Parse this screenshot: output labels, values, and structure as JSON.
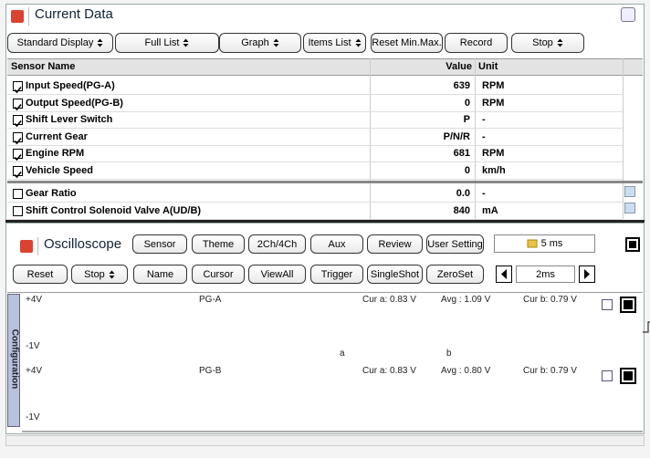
{
  "current_data": {
    "title": "Current Data",
    "toolbar": [
      {
        "label": "Standard Display",
        "dropdown": true
      },
      {
        "label": "Full List",
        "dropdown": true
      },
      {
        "label": "Graph",
        "dropdown": true
      },
      {
        "label": "Items List",
        "dropdown": true
      },
      {
        "label": "Reset Min.Max.",
        "dropdown": false
      },
      {
        "label": "Record",
        "dropdown": false
      },
      {
        "label": "Stop",
        "dropdown": true
      }
    ],
    "table": {
      "columns": [
        "Sensor Name",
        "Value",
        "Unit"
      ],
      "rows": [
        {
          "name": "Input Speed(PG-A)",
          "value": "639",
          "unit": "RPM",
          "checked": true
        },
        {
          "name": "Output Speed(PG-B)",
          "value": "0",
          "unit": "RPM",
          "checked": true
        },
        {
          "name": "Shift Lever Switch",
          "value": "P",
          "unit": "-",
          "checked": true
        },
        {
          "name": "Current Gear",
          "value": "P/N/R",
          "unit": "-",
          "checked": true
        },
        {
          "name": "Engine RPM",
          "value": "681",
          "unit": "RPM",
          "checked": true
        },
        {
          "name": "Vehicle Speed",
          "value": "0",
          "unit": "km/h",
          "checked": true
        }
      ],
      "more_rows": [
        {
          "name": "Gear Ratio",
          "value": "0.0",
          "unit": "-",
          "checked": false
        },
        {
          "name": "Shift Control Solenoid Valve A(UD/B)",
          "value": "840",
          "unit": "mA",
          "checked": false
        }
      ]
    }
  },
  "oscilloscope": {
    "title": "Oscilloscope",
    "toolbar": [
      {
        "label": "Sensor",
        "dropdown": false
      },
      {
        "label": "Theme",
        "dropdown": false
      },
      {
        "label": "2Ch/4Ch",
        "dropdown": false
      },
      {
        "label": "Aux",
        "dropdown": false
      },
      {
        "label": "Review",
        "dropdown": false
      },
      {
        "label": "User Setting",
        "dropdown": false
      }
    ],
    "timebase": "5 ms",
    "toolbar2": [
      {
        "label": "Reset",
        "dropdown": false
      },
      {
        "label": "Stop",
        "dropdown": true
      },
      {
        "label": "Name",
        "dropdown": false
      },
      {
        "label": "Cursor",
        "dropdown": false
      },
      {
        "label": "ViewAll",
        "dropdown": false
      },
      {
        "label": "Trigger",
        "dropdown": false
      },
      {
        "label": "SingleShot",
        "dropdown": false
      },
      {
        "label": "ZeroSet",
        "dropdown": false
      }
    ],
    "zoom": "2ms",
    "side_tab": "Configuration",
    "channels": [
      {
        "top": "+4V",
        "name": "PG-A",
        "cur_a": "Cur a: 0.83 V",
        "avg": "Avg : 1.09 V",
        "cur_b": "Cur b: 0.79 V",
        "bottom": "-1V"
      },
      {
        "top": "+4V",
        "name": "PG-B",
        "cur_a": "Cur a: 0.83 V",
        "avg": "Avg : 0.80 V",
        "cur_b": "Cur b: 0.79 V",
        "bottom": "-1V"
      }
    ],
    "cursors": [
      "a",
      "b"
    ]
  }
}
